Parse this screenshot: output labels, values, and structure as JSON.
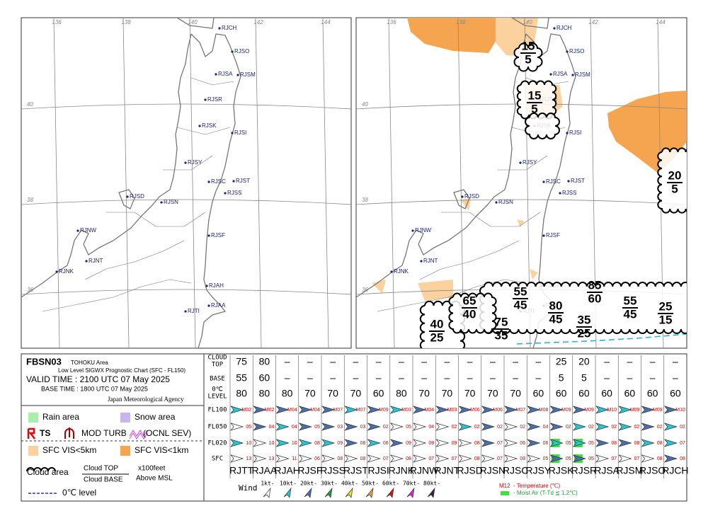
{
  "header": {
    "code": "FBSN03",
    "area": "TOHOKU Area",
    "chart_name": "Low Level SIGWX Prognostic Chart (SFC - FL150)",
    "valid_time": "VALID TIME : 2100 UTC 07 May 2025",
    "base_time": "BASE TIME : 1800 UTC 07 May 2025",
    "agency": "Japan Meteorological Agency"
  },
  "legend": {
    "rain": "Rain area",
    "snow": "Snow area",
    "ts": "TS",
    "turb": "MOD TURB",
    "turb_sev": "(OCNL SEV)",
    "vis5": "SFC VIS<5km",
    "vis1": "SFC VIS<1km",
    "cloud": "Cloud area",
    "cloud_top": "Cloud TOP",
    "cloud_base": "Cloud BASE",
    "unit": "x100feet",
    "reference": "Above MSL",
    "freezing": "0℃ level"
  },
  "map": {
    "longitudes": [
      "136",
      "138",
      "140",
      "142",
      "144"
    ],
    "latitudes": [
      "40",
      "38",
      "36"
    ],
    "stations": [
      "RJCH",
      "RJSO",
      "RJSA",
      "RJSM",
      "RJSR",
      "RJSK",
      "RJSI",
      "RJSY",
      "RJSC",
      "RJST",
      "RJSS",
      "RJSD",
      "RJSN",
      "RJSF",
      "RJNW",
      "RJNT",
      "RJNK",
      "RJAH",
      "RJAA",
      "RJTI"
    ]
  },
  "forecast_clouds": [
    {
      "top": "15",
      "base": "5"
    },
    {
      "top": "15",
      "base": "5"
    },
    {
      "top": "20",
      "base": "5"
    },
    {
      "top": "65",
      "base": "40"
    },
    {
      "top": "55",
      "base": "45"
    },
    {
      "top": "85",
      "base": "60"
    },
    {
      "top": "55",
      "base": "45"
    },
    {
      "top": "25",
      "base": "15"
    },
    {
      "top": "40",
      "base": "25"
    },
    {
      "top": "75",
      "base": "35"
    },
    {
      "top": "80",
      "base": "45"
    },
    {
      "top": "35",
      "base": "25"
    }
  ],
  "table": {
    "row_labels": {
      "cloud": "CLOUD",
      "top": "TOP",
      "base": "BASE",
      "zero": "0℃",
      "level": "LEVEL",
      "fl100": "FL100",
      "fl050": "FL050",
      "fl020": "FL020",
      "sfc": "SFC"
    },
    "stations": [
      "RJTT",
      "RJAA",
      "RJAH",
      "RJSF",
      "RJSS",
      "RJST",
      "RJSI",
      "RJNK",
      "RJNW",
      "RJNT",
      "RJSD",
      "RJSN",
      "RJSC",
      "RJSY",
      "RJSK",
      "RJSR",
      "RJSA",
      "RJSM",
      "RJSO",
      "RJCH"
    ],
    "cloud_top": [
      "75",
      "80",
      "–",
      "–",
      "–",
      "–",
      "–",
      "–",
      "–",
      "–",
      "–",
      "–",
      "–",
      "–",
      "25",
      "20",
      "–",
      "–",
      "–",
      "–"
    ],
    "cloud_base": [
      "55",
      "60",
      "–",
      "–",
      "–",
      "–",
      "–",
      "–",
      "–",
      "–",
      "–",
      "–",
      "–",
      "–",
      "5",
      "5",
      "–",
      "–",
      "–",
      "–"
    ],
    "freezing_level": [
      "80",
      "80",
      "80",
      "70",
      "70",
      "70",
      "60",
      "80",
      "70",
      "70",
      "70",
      "70",
      "70",
      "60",
      "60",
      "60",
      "60",
      "60",
      "60",
      "60"
    ],
    "fl100": [
      "M02",
      "M02",
      "M04",
      "M04",
      "M07",
      "M07",
      "M09",
      "M03",
      "M04",
      "M03",
      "M06",
      "M06",
      "M07",
      "M08",
      "M09",
      "M09",
      "M10",
      "M09",
      "M09",
      "M10"
    ],
    "fl050": [
      "05",
      "04",
      "04",
      "05",
      "03",
      "03",
      "02",
      "05",
      "04",
      "02",
      "02",
      "02",
      "02",
      "04",
      "02",
      "02",
      "02",
      "02",
      "02",
      "02"
    ],
    "fl020": [
      "10",
      "10",
      "10",
      "08",
      "09",
      "08",
      "06",
      "09",
      "09",
      "09",
      "08",
      "07",
      "06",
      "06",
      "05",
      "05",
      "08",
      "08",
      "08",
      "07"
    ],
    "sfc": [
      "13",
      "13",
      "11",
      "06",
      "08",
      "08",
      "07",
      "08",
      "07",
      "07",
      "08",
      "07",
      "08",
      "05",
      "05",
      "05",
      "07",
      "07",
      "08",
      "08"
    ]
  },
  "wind_legend": {
    "title": "Wind",
    "speeds": [
      "1kt-",
      "10kt-",
      "20kt-",
      "30kt-",
      "40kt-",
      "50kt-",
      "60kt-",
      "70kt-",
      "80kt-"
    ]
  },
  "temperature_legend": {
    "sample": "M12",
    "temperature": "- Temperature (℃)",
    "moist_air": "- Moist Air (T-Td ≦ 1.2℃)"
  }
}
